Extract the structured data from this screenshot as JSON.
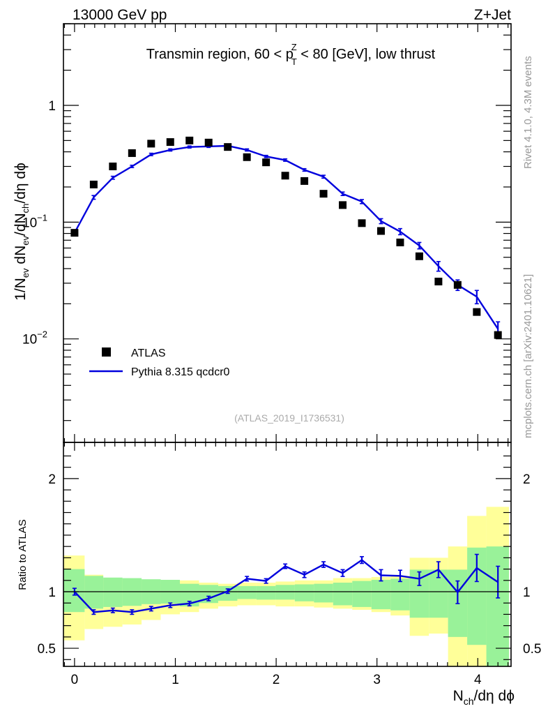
{
  "header": {
    "left_label": "13000 GeV pp",
    "right_label": "Z+Jet",
    "analysis_id": "(ATLAS_2019_I1736531)",
    "side_rivet": "Rivet 4.1.0,  4.3M events",
    "side_source": "mcplots.cern.ch [arXiv:2401.10621]"
  },
  "title": {
    "pre": "Transmin region, 60 < p",
    "sub": "T",
    "sup": "Z",
    "post": " < 80 [GeV], low thrust"
  },
  "axes": {
    "y_main": {
      "l1": "1/N",
      "s1": "ev",
      "l2": " dN",
      "s2": "ev",
      "l3": "/dN",
      "s3": "ch",
      "l4": "/dη dϕ"
    },
    "y_ratio": "Ratio to ATLAS",
    "x": {
      "n": "N",
      "sub": "ch",
      "rest": "/dη dϕ"
    },
    "x_ticks": [
      "0",
      "1",
      "2",
      "3",
      "4"
    ],
    "y_main_ticks": [
      "1",
      "10",
      "10"
    ],
    "y_main_tick_exp": [
      "",
      "−1",
      "−2"
    ],
    "y_ratio_ticks": [
      "0.5",
      "1",
      "2"
    ]
  },
  "legend": {
    "data_label": "ATLAS",
    "mc_label": "Pythia 8.315 qcdcr0"
  },
  "colors": {
    "mc": "#0000dd",
    "band_inner": "#99f299",
    "band_outer": "#ffff99",
    "data": "#000000"
  },
  "chart_data": {
    "type": "scatter",
    "title": "Transmin region, 60 < pT^Z < 80 [GeV], low thrust",
    "xlabel": "Nch/dη dϕ",
    "ylabel": "1/Nev dNev/dNch/dη dϕ",
    "y_scale": "log",
    "xlim": [
      -0.11,
      4.33
    ],
    "ylim": [
      0.0013,
      5.0
    ],
    "ratio_ylim": [
      0.34,
      2.32
    ],
    "ratio_ylabel": "Ratio to ATLAS",
    "x": [
      0.0,
      0.19,
      0.38,
      0.57,
      0.76,
      0.95,
      1.14,
      1.33,
      1.52,
      1.71,
      1.9,
      2.09,
      2.28,
      2.47,
      2.66,
      2.85,
      3.04,
      3.23,
      3.42,
      3.61,
      3.8,
      3.99,
      4.2
    ],
    "x_edges": [
      -0.11,
      0.1,
      0.285,
      0.475,
      0.665,
      0.855,
      1.045,
      1.235,
      1.425,
      1.615,
      1.805,
      1.995,
      2.185,
      2.375,
      2.565,
      2.755,
      2.945,
      3.135,
      3.325,
      3.515,
      3.705,
      3.895,
      4.085,
      4.31
    ],
    "series": [
      {
        "name": "ATLAS",
        "marker": "square",
        "values": [
          0.081,
          0.21,
          0.3,
          0.39,
          0.47,
          0.485,
          0.5,
          0.48,
          0.44,
          0.36,
          0.325,
          0.25,
          0.225,
          0.175,
          0.14,
          0.098,
          0.084,
          0.067,
          0.051,
          0.031,
          0.029,
          0.017,
          0.0108
        ]
      },
      {
        "name": "Pythia 8.315 qcdcr0",
        "marker": "line",
        "values": [
          0.081,
          0.163,
          0.24,
          0.3,
          0.38,
          0.415,
          0.44,
          0.445,
          0.45,
          0.415,
          0.365,
          0.34,
          0.28,
          0.245,
          0.175,
          0.15,
          0.102,
          0.083,
          0.063,
          0.042,
          0.029,
          0.023,
          0.0122
        ],
        "errors": [
          0.004,
          0.006,
          0.007,
          0.007,
          0.009,
          0.009,
          0.009,
          0.009,
          0.009,
          0.009,
          0.008,
          0.008,
          0.007,
          0.007,
          0.006,
          0.006,
          0.005,
          0.005,
          0.004,
          0.004,
          0.003,
          0.003,
          0.0018
        ]
      }
    ],
    "ratio": {
      "values": [
        1.0,
        0.82,
        0.835,
        0.82,
        0.85,
        0.88,
        0.895,
        0.94,
        1.005,
        1.115,
        1.095,
        1.225,
        1.15,
        1.24,
        1.165,
        1.28,
        1.145,
        1.14,
        1.115,
        1.195,
        0.995,
        1.21,
        1.085
      ],
      "errors": [
        0.03,
        0.02,
        0.02,
        0.02,
        0.02,
        0.02,
        0.02,
        0.02,
        0.02,
        0.02,
        0.02,
        0.02,
        0.025,
        0.025,
        0.03,
        0.03,
        0.05,
        0.05,
        0.06,
        0.07,
        0.1,
        0.12,
        0.14
      ],
      "band_inner": [
        [
          0.82,
          1.2
        ],
        [
          0.85,
          1.14
        ],
        [
          0.865,
          1.125
        ],
        [
          0.875,
          1.12
        ],
        [
          0.89,
          1.11
        ],
        [
          0.895,
          1.105
        ],
        [
          0.87,
          1.07
        ],
        [
          0.9,
          1.06
        ],
        [
          0.92,
          1.05
        ],
        [
          0.935,
          1.05
        ],
        [
          0.93,
          1.05
        ],
        [
          0.93,
          1.06
        ],
        [
          0.915,
          1.065
        ],
        [
          0.905,
          1.07
        ],
        [
          0.88,
          1.08
        ],
        [
          0.865,
          1.095
        ],
        [
          0.845,
          1.105
        ],
        [
          0.835,
          1.115
        ],
        [
          0.77,
          1.195
        ],
        [
          0.77,
          1.195
        ],
        [
          0.6,
          1.195
        ],
        [
          0.53,
          1.39
        ],
        [
          0.34,
          1.4
        ]
      ],
      "band_outer": [
        [
          0.57,
          1.32
        ],
        [
          0.67,
          1.15
        ],
        [
          0.69,
          1.1
        ],
        [
          0.71,
          1.1
        ],
        [
          0.75,
          1.1
        ],
        [
          0.8,
          1.07
        ],
        [
          0.82,
          1.1
        ],
        [
          0.85,
          1.08
        ],
        [
          0.87,
          1.07
        ],
        [
          0.88,
          1.08
        ],
        [
          0.88,
          1.08
        ],
        [
          0.87,
          1.09
        ],
        [
          0.87,
          1.1
        ],
        [
          0.86,
          1.1
        ],
        [
          0.85,
          1.12
        ],
        [
          0.84,
          1.12
        ],
        [
          0.82,
          1.13
        ],
        [
          0.79,
          1.14
        ],
        [
          0.61,
          1.3
        ],
        [
          0.63,
          1.3
        ],
        [
          0.34,
          1.4
        ],
        [
          0.34,
          1.67
        ],
        [
          0.34,
          1.75
        ]
      ]
    }
  }
}
